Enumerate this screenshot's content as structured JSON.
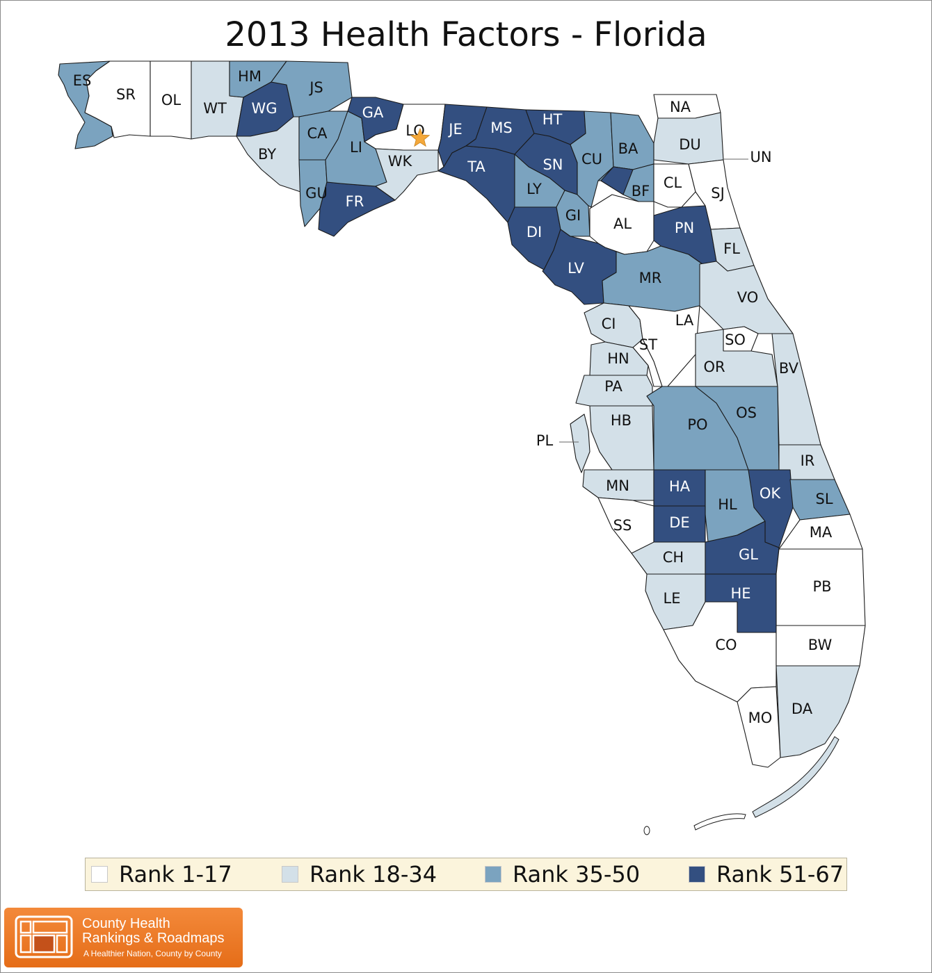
{
  "title": "2013 Health Factors - Florida",
  "colors": {
    "rank_1_17": "#ffffff",
    "rank_18_34": "#d3e0e8",
    "rank_35_50": "#7ba3bf",
    "rank_51_67": "#334f80",
    "county_border": "#1a1a1a",
    "star": "#f4a83a"
  },
  "legend": [
    {
      "label": "Rank 1-17",
      "class": "rank_1_17"
    },
    {
      "label": "Rank 18-34",
      "class": "rank_18_34"
    },
    {
      "label": "Rank 35-50",
      "class": "rank_35_50"
    },
    {
      "label": "Rank 51-67",
      "class": "rank_51_67"
    }
  ],
  "counties": [
    {
      "code": "ES",
      "class": "rank_35_50"
    },
    {
      "code": "SR",
      "class": "rank_1_17"
    },
    {
      "code": "OL",
      "class": "rank_1_17"
    },
    {
      "code": "WT",
      "class": "rank_18_34"
    },
    {
      "code": "HM",
      "class": "rank_35_50"
    },
    {
      "code": "WG",
      "class": "rank_51_67"
    },
    {
      "code": "JS",
      "class": "rank_35_50"
    },
    {
      "code": "BY",
      "class": "rank_18_34"
    },
    {
      "code": "CA",
      "class": "rank_35_50"
    },
    {
      "code": "GU",
      "class": "rank_35_50"
    },
    {
      "code": "FR",
      "class": "rank_51_67"
    },
    {
      "code": "LI",
      "class": "rank_35_50"
    },
    {
      "code": "GA",
      "class": "rank_51_67"
    },
    {
      "code": "LO",
      "class": "rank_1_17"
    },
    {
      "code": "WK",
      "class": "rank_18_34"
    },
    {
      "code": "JE",
      "class": "rank_51_67"
    },
    {
      "code": "TA",
      "class": "rank_51_67"
    },
    {
      "code": "MS",
      "class": "rank_51_67"
    },
    {
      "code": "HT",
      "class": "rank_51_67"
    },
    {
      "code": "SN",
      "class": "rank_51_67"
    },
    {
      "code": "LY",
      "class": "rank_35_50"
    },
    {
      "code": "DI",
      "class": "rank_51_67"
    },
    {
      "code": "LV",
      "class": "rank_51_67"
    },
    {
      "code": "GI",
      "class": "rank_35_50"
    },
    {
      "code": "CU",
      "class": "rank_35_50"
    },
    {
      "code": "BA",
      "class": "rank_35_50"
    },
    {
      "code": "BF",
      "class": "rank_35_50"
    },
    {
      "code": "UN",
      "class": "rank_51_67"
    },
    {
      "code": "NA",
      "class": "rank_1_17"
    },
    {
      "code": "DU",
      "class": "rank_18_34"
    },
    {
      "code": "CL",
      "class": "rank_1_17"
    },
    {
      "code": "SJ",
      "class": "rank_1_17"
    },
    {
      "code": "AL",
      "class": "rank_1_17"
    },
    {
      "code": "PN",
      "class": "rank_51_67"
    },
    {
      "code": "FL",
      "class": "rank_18_34"
    },
    {
      "code": "MR",
      "class": "rank_35_50"
    },
    {
      "code": "VO",
      "class": "rank_18_34"
    },
    {
      "code": "CI",
      "class": "rank_18_34"
    },
    {
      "code": "LA",
      "class": "rank_1_17"
    },
    {
      "code": "ST",
      "class": "rank_1_17"
    },
    {
      "code": "SO",
      "class": "rank_1_17"
    },
    {
      "code": "HN",
      "class": "rank_18_34"
    },
    {
      "code": "OR",
      "class": "rank_18_34"
    },
    {
      "code": "BV",
      "class": "rank_18_34"
    },
    {
      "code": "PA",
      "class": "rank_18_34"
    },
    {
      "code": "PO",
      "class": "rank_35_50"
    },
    {
      "code": "OS",
      "class": "rank_35_50"
    },
    {
      "code": "HB",
      "class": "rank_18_34"
    },
    {
      "code": "PL",
      "class": "rank_18_34"
    },
    {
      "code": "IR",
      "class": "rank_18_34"
    },
    {
      "code": "MN",
      "class": "rank_18_34"
    },
    {
      "code": "HA",
      "class": "rank_51_67"
    },
    {
      "code": "HL",
      "class": "rank_35_50"
    },
    {
      "code": "OK",
      "class": "rank_51_67"
    },
    {
      "code": "SL",
      "class": "rank_35_50"
    },
    {
      "code": "SS",
      "class": "rank_1_17"
    },
    {
      "code": "DE",
      "class": "rank_51_67"
    },
    {
      "code": "MA",
      "class": "rank_1_17"
    },
    {
      "code": "CH",
      "class": "rank_18_34"
    },
    {
      "code": "GL",
      "class": "rank_51_67"
    },
    {
      "code": "PB",
      "class": "rank_1_17"
    },
    {
      "code": "LE",
      "class": "rank_18_34"
    },
    {
      "code": "HE",
      "class": "rank_51_67"
    },
    {
      "code": "CO",
      "class": "rank_1_17"
    },
    {
      "code": "BW",
      "class": "rank_1_17"
    },
    {
      "code": "MO",
      "class": "rank_1_17"
    },
    {
      "code": "DA",
      "class": "rank_18_34"
    }
  ],
  "logo": {
    "line1": "County Health",
    "line2": "Rankings & Roadmaps",
    "tagline": "A Healthier Nation, County by County"
  }
}
